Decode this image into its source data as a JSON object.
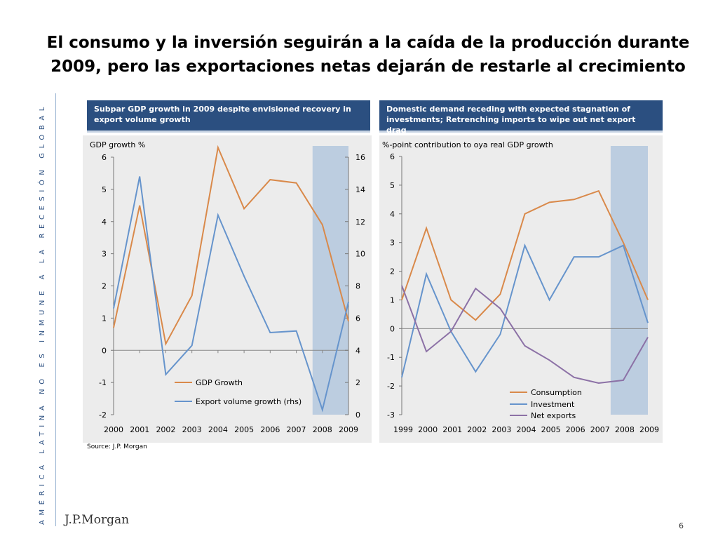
{
  "page": {
    "title": "El consumo y la inversión seguirán a la caída de la producción durante 2009, pero las exportaciones netas dejarán de restarle al crecimiento",
    "side_text": "AMÉRICA LATINA NO ES INMUNE A LA RECESIÓN GLOBAL",
    "source": "Source: J.P. Morgan",
    "logo": "J.P.Morgan",
    "page_number": "6"
  },
  "colors": {
    "header_bg": "#2b4f80",
    "panel_bg": "#ececec",
    "forecast_band": "#bccde0",
    "orange": "#d9894a",
    "blue": "#6694cc",
    "purple": "#8c71a6"
  },
  "chart_data": [
    {
      "type": "line",
      "header": "Subpar GDP growth in 2009 despite envisioned recovery in export volume growth",
      "title": "GDP growth %",
      "x": [
        "2000",
        "2001",
        "2002",
        "2003",
        "2004",
        "2005",
        "2006",
        "2007",
        "2008",
        "2009"
      ],
      "ylim": [
        -2,
        6
      ],
      "y_ticks": [
        -2,
        -1,
        0,
        1,
        2,
        3,
        4,
        5,
        6
      ],
      "y2lim": [
        0,
        16
      ],
      "y2_ticks": [
        0,
        2,
        4,
        6,
        8,
        10,
        12,
        14,
        16
      ],
      "forecast_band": [
        "2008",
        "2009"
      ],
      "legend_position": "bottom-center",
      "series": [
        {
          "name": "GDP Growth",
          "axis": "left",
          "color": "#d9894a",
          "values": [
            0.7,
            4.5,
            0.2,
            1.7,
            6.3,
            4.4,
            5.3,
            5.2,
            3.9,
            0.9
          ]
        },
        {
          "name": "Export volume growth (rhs)",
          "axis": "right",
          "color": "#6694cc",
          "values": [
            6.6,
            14.8,
            2.5,
            4.3,
            12.4,
            8.6,
            5.1,
            5.2,
            0.3,
            7.0
          ]
        }
      ]
    },
    {
      "type": "line",
      "header": "Domestic demand receding with expected stagnation of investments; Retrenching imports to wipe out net export drag",
      "title": "%-point contribution to oya real GDP growth",
      "x": [
        "1999",
        "2000",
        "2001",
        "2002",
        "2003",
        "2004",
        "2005",
        "2006",
        "2007",
        "2008",
        "2009"
      ],
      "ylim": [
        -3,
        6
      ],
      "y_ticks": [
        -3,
        -2,
        -1,
        0,
        1,
        2,
        3,
        4,
        5,
        6
      ],
      "forecast_band": [
        "2008",
        "2009"
      ],
      "legend_position": "bottom-right",
      "series": [
        {
          "name": "Consumption",
          "color": "#d9894a",
          "values": [
            1.0,
            3.5,
            1.0,
            0.3,
            1.2,
            4.0,
            4.4,
            4.5,
            4.8,
            3.0,
            1.0
          ]
        },
        {
          "name": "Investment",
          "color": "#6694cc",
          "values": [
            -1.7,
            1.9,
            -0.1,
            -1.5,
            -0.2,
            2.9,
            1.0,
            2.5,
            2.5,
            2.9,
            0.2
          ]
        },
        {
          "name": "Net exports",
          "color": "#8c71a6",
          "values": [
            1.5,
            -0.8,
            -0.1,
            1.4,
            0.7,
            -0.6,
            -1.1,
            -1.7,
            -1.9,
            -1.8,
            -0.3
          ]
        }
      ]
    }
  ]
}
